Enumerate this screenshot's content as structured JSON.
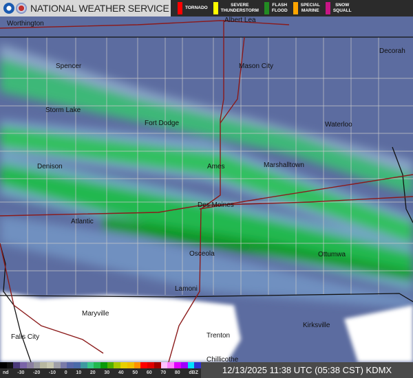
{
  "header": {
    "title": "NATIONAL WEATHER SERVICE",
    "logos": [
      "noaa-logo",
      "nws-logo"
    ]
  },
  "warnings": [
    {
      "label": "TORNADO",
      "color": "#ff0000"
    },
    {
      "label": "SEVERE\nTHUNDERSTORM",
      "color": "#ffff00"
    },
    {
      "label": "FLASH\nFLOOD",
      "color": "#228b22"
    },
    {
      "label": "SPECIAL\nMARINE",
      "color": "#ffa500"
    },
    {
      "label": "SNOW\nSQUALL",
      "color": "#c71585"
    }
  ],
  "cities": [
    {
      "name": "Worthington"
    },
    {
      "name": "Albert Lea"
    },
    {
      "name": "Decorah"
    },
    {
      "name": "Spencer"
    },
    {
      "name": "Mason City"
    },
    {
      "name": "Storm Lake"
    },
    {
      "name": "Fort Dodge"
    },
    {
      "name": "Waterloo"
    },
    {
      "name": "Denison"
    },
    {
      "name": "Ames"
    },
    {
      "name": "Marshalltown"
    },
    {
      "name": "Des Moines"
    },
    {
      "name": "Atlantic"
    },
    {
      "name": "Osceola"
    },
    {
      "name": "Ottumwa"
    },
    {
      "name": "Lamoni"
    },
    {
      "name": "Maryville"
    },
    {
      "name": "Kirksville"
    },
    {
      "name": "Falls City"
    },
    {
      "name": "Trenton"
    },
    {
      "name": "Chillicothe"
    }
  ],
  "scale": {
    "ticks": [
      "nd",
      "-30",
      "-20",
      "-10",
      "0",
      "10",
      "20",
      "30",
      "40",
      "50",
      "60",
      "70",
      "80",
      "dBZ"
    ],
    "colors": [
      "#000000",
      "#111111",
      "#4b3a7a",
      "#7a64a8",
      "#8a7fa0",
      "#9c9ca0",
      "#b8b8a0",
      "#c8c8b0",
      "#a0a0a8",
      "#7a7aa8",
      "#5866a8",
      "#4a6aa8",
      "#3e9aa0",
      "#3ac888",
      "#22b850",
      "#0a9a0a",
      "#50b000",
      "#a8c800",
      "#e8d000",
      "#f0c000",
      "#ff9000",
      "#ff0000",
      "#e00000",
      "#a00000",
      "#ffc0ff",
      "#ff80ff",
      "#e000ff",
      "#a000ff",
      "#00e0ff",
      "#3030d0"
    ]
  },
  "timestamp": "12/13/2025 11:38 UTC (05:38 CST) KDMX"
}
